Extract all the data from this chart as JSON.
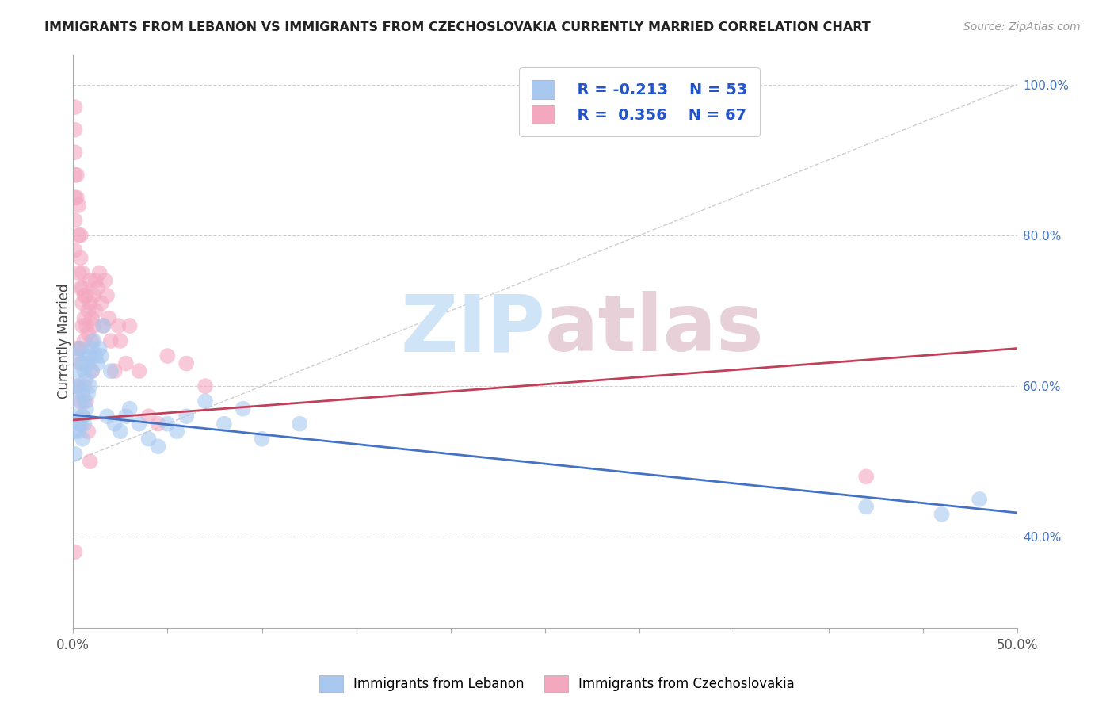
{
  "title": "IMMIGRANTS FROM LEBANON VS IMMIGRANTS FROM CZECHOSLOVAKIA CURRENTLY MARRIED CORRELATION CHART",
  "source": "Source: ZipAtlas.com",
  "ylabel": "Currently Married",
  "legend_blue_r": "R = -0.213",
  "legend_blue_n": "N = 53",
  "legend_pink_r": "R =  0.356",
  "legend_pink_n": "N = 67",
  "legend_label_blue": "Immigrants from Lebanon",
  "legend_label_pink": "Immigrants from Czechoslovakia",
  "blue_color": "#a8c8f0",
  "pink_color": "#f4a8c0",
  "blue_line_color": "#4472c4",
  "pink_line_color": "#c0405a",
  "diag_color": "#b8b8b8",
  "background": "#ffffff",
  "xlim": [
    0.0,
    0.5
  ],
  "ylim": [
    0.28,
    1.04
  ],
  "blue_scatter_x": [
    0.001,
    0.001,
    0.002,
    0.002,
    0.002,
    0.003,
    0.003,
    0.003,
    0.004,
    0.004,
    0.004,
    0.005,
    0.005,
    0.005,
    0.005,
    0.006,
    0.006,
    0.006,
    0.007,
    0.007,
    0.007,
    0.008,
    0.008,
    0.009,
    0.009,
    0.01,
    0.01,
    0.011,
    0.012,
    0.013,
    0.014,
    0.015,
    0.016,
    0.018,
    0.02,
    0.022,
    0.025,
    0.028,
    0.03,
    0.035,
    0.04,
    0.045,
    0.05,
    0.055,
    0.06,
    0.07,
    0.08,
    0.09,
    0.1,
    0.12,
    0.42,
    0.46,
    0.48
  ],
  "blue_scatter_y": [
    0.54,
    0.51,
    0.56,
    0.6,
    0.64,
    0.58,
    0.54,
    0.62,
    0.6,
    0.65,
    0.55,
    0.63,
    0.59,
    0.56,
    0.53,
    0.62,
    0.58,
    0.55,
    0.64,
    0.61,
    0.57,
    0.63,
    0.59,
    0.64,
    0.6,
    0.65,
    0.62,
    0.66,
    0.64,
    0.63,
    0.65,
    0.64,
    0.68,
    0.56,
    0.62,
    0.55,
    0.54,
    0.56,
    0.57,
    0.55,
    0.53,
    0.52,
    0.55,
    0.54,
    0.56,
    0.58,
    0.55,
    0.57,
    0.53,
    0.55,
    0.44,
    0.43,
    0.45
  ],
  "pink_scatter_x": [
    0.001,
    0.001,
    0.002,
    0.002,
    0.003,
    0.003,
    0.003,
    0.004,
    0.004,
    0.004,
    0.005,
    0.005,
    0.005,
    0.006,
    0.006,
    0.006,
    0.007,
    0.007,
    0.008,
    0.008,
    0.009,
    0.009,
    0.01,
    0.01,
    0.011,
    0.011,
    0.012,
    0.012,
    0.013,
    0.014,
    0.015,
    0.016,
    0.017,
    0.018,
    0.019,
    0.02,
    0.022,
    0.024,
    0.025,
    0.028,
    0.03,
    0.035,
    0.04,
    0.045,
    0.05,
    0.06,
    0.07,
    0.002,
    0.003,
    0.004,
    0.005,
    0.006,
    0.007,
    0.008,
    0.009,
    0.01,
    0.42,
    0.002,
    0.003,
    0.004,
    0.005,
    0.001,
    0.001,
    0.001,
    0.001,
    0.001,
    0.001
  ],
  "pink_scatter_y": [
    0.78,
    0.82,
    0.88,
    0.85,
    0.75,
    0.8,
    0.84,
    0.73,
    0.77,
    0.8,
    0.73,
    0.71,
    0.75,
    0.69,
    0.66,
    0.72,
    0.72,
    0.68,
    0.7,
    0.67,
    0.74,
    0.71,
    0.69,
    0.66,
    0.72,
    0.68,
    0.74,
    0.7,
    0.73,
    0.75,
    0.71,
    0.68,
    0.74,
    0.72,
    0.69,
    0.66,
    0.62,
    0.68,
    0.66,
    0.63,
    0.68,
    0.62,
    0.56,
    0.55,
    0.64,
    0.63,
    0.6,
    0.6,
    0.55,
    0.58,
    0.56,
    0.6,
    0.58,
    0.54,
    0.5,
    0.62,
    0.48,
    0.65,
    0.65,
    0.63,
    0.68,
    0.97,
    0.94,
    0.91,
    0.88,
    0.85,
    0.38
  ],
  "blue_line_x": [
    0.0,
    0.5
  ],
  "blue_line_y": [
    0.562,
    0.432
  ],
  "pink_line_x": [
    0.0,
    0.5
  ],
  "pink_line_y": [
    0.555,
    0.65
  ],
  "diag_line_x": [
    0.0,
    0.5
  ],
  "diag_line_y": [
    0.5,
    1.0
  ],
  "ytick_vals": [
    0.4,
    0.6,
    0.8,
    1.0
  ],
  "ytick_labels": [
    "40.0%",
    "60.0%",
    "80.0%",
    "100.0%"
  ],
  "xtick_show": [
    0.0,
    0.5
  ],
  "xtick_show_labels": [
    "0.0%",
    "50.0%"
  ],
  "xtick_minor": [
    0.05,
    0.1,
    0.15,
    0.2,
    0.25,
    0.3,
    0.35,
    0.4,
    0.45
  ]
}
